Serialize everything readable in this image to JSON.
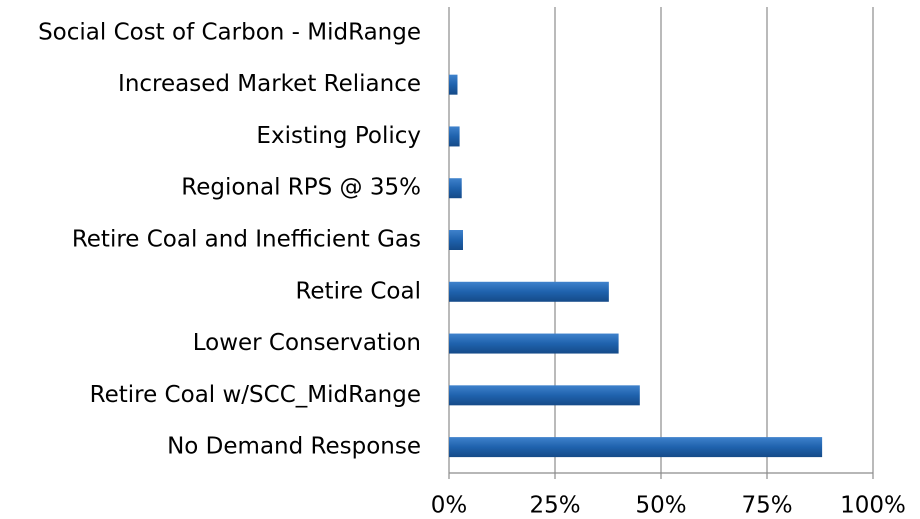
{
  "chart_data": {
    "type": "barh",
    "categories": [
      "Social Cost of Carbon - MidRange",
      "Increased Market Reliance",
      "Existing Policy",
      "Regional RPS @ 35%",
      "Retire Coal and Inefficient Gas",
      "Retire Coal",
      "Lower Conservation",
      "Retire Coal w/SCC_MidRange",
      "No Demand Response"
    ],
    "values": [
      0,
      2,
      2.5,
      3,
      3.3,
      37.7,
      40,
      45,
      88
    ],
    "color": "#1f62ad",
    "xlim": [
      0,
      100
    ],
    "xticks": [
      {
        "value": 0,
        "label": "0%"
      },
      {
        "value": 25,
        "label": "25%"
      },
      {
        "value": 50,
        "label": "50%"
      },
      {
        "value": 75,
        "label": "75%"
      },
      {
        "value": 100,
        "label": "100%"
      }
    ],
    "grid": true
  }
}
